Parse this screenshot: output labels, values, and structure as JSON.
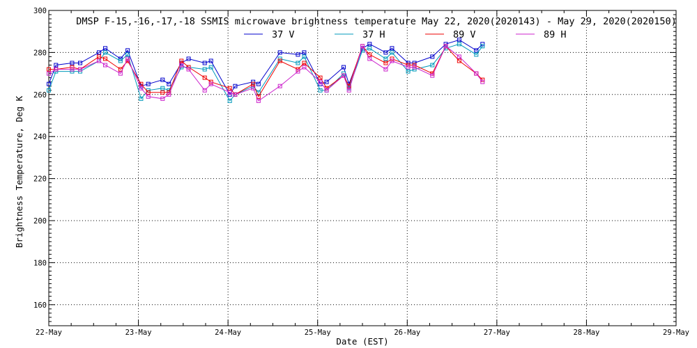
{
  "chart_data": {
    "type": "line",
    "title": "DMSP F-15,-16,-17,-18 SSMIS microwave brightness temperature May 22, 2020(2020143) - May 29, 2020(2020150)",
    "xlabel": "Date (EST)",
    "ylabel": "Brightness Temperature, Deg K",
    "x_ticks": [
      "22-May",
      "23-May",
      "24-May",
      "25-May",
      "26-May",
      "27-May",
      "28-May",
      "29-May"
    ],
    "xlim": [
      0,
      7
    ],
    "ylim": [
      150,
      300
    ],
    "y_ticks": [
      160,
      180,
      200,
      220,
      240,
      260,
      280,
      300
    ],
    "grid": true,
    "legend_position": "top",
    "series": [
      {
        "name": "37 V",
        "color": "#0000cc",
        "x": [
          0.0,
          0.08,
          0.26,
          0.35,
          0.56,
          0.63,
          0.8,
          0.88,
          1.03,
          1.11,
          1.27,
          1.34,
          1.48,
          1.56,
          1.74,
          1.81,
          2.02,
          2.08,
          2.28,
          2.34,
          2.58,
          2.78,
          2.85,
          3.03,
          3.1,
          3.29,
          3.35,
          3.5,
          3.58,
          3.76,
          3.83,
          4.01,
          4.08,
          4.28,
          4.43,
          4.58,
          4.77,
          4.84
        ],
        "y": [
          265,
          274,
          275,
          275,
          280,
          282,
          277,
          281,
          264,
          265,
          267,
          265,
          275,
          277,
          275,
          276,
          260,
          264,
          266,
          265,
          280,
          279,
          280,
          265,
          266,
          273,
          265,
          282,
          284,
          280,
          282,
          275,
          275,
          278,
          284,
          286,
          281,
          284
        ]
      },
      {
        "name": "37 H",
        "color": "#0099bb",
        "x": [
          0.0,
          0.08,
          0.26,
          0.35,
          0.56,
          0.63,
          0.8,
          0.88,
          1.03,
          1.11,
          1.27,
          1.34,
          1.48,
          1.56,
          1.74,
          1.81,
          2.02,
          2.08,
          2.28,
          2.34,
          2.58,
          2.78,
          2.85,
          3.03,
          3.1,
          3.29,
          3.35,
          3.5,
          3.58,
          3.76,
          3.83,
          4.01,
          4.08,
          4.28,
          4.43,
          4.58,
          4.77,
          4.84
        ],
        "y": [
          262,
          271,
          271,
          271,
          276,
          280,
          276,
          279,
          258,
          262,
          263,
          262,
          273,
          273,
          272,
          273,
          257,
          260,
          264,
          261,
          277,
          275,
          278,
          262,
          262,
          270,
          263,
          281,
          282,
          277,
          280,
          271,
          272,
          274,
          282,
          284,
          279,
          283
        ]
      },
      {
        "name": "89 V",
        "color": "#ee0000",
        "x": [
          0.0,
          0.08,
          0.26,
          0.35,
          0.56,
          0.63,
          0.8,
          0.88,
          1.03,
          1.11,
          1.27,
          1.34,
          1.48,
          1.56,
          1.74,
          1.81,
          2.02,
          2.08,
          2.28,
          2.34,
          2.58,
          2.78,
          2.85,
          3.03,
          3.1,
          3.29,
          3.35,
          3.5,
          3.58,
          3.76,
          3.83,
          4.01,
          4.08,
          4.28,
          4.43,
          4.58,
          4.77,
          4.84
        ],
        "y": [
          272,
          272,
          273,
          272,
          278,
          277,
          272,
          276,
          265,
          261,
          261,
          261,
          276,
          273,
          268,
          266,
          263,
          260,
          265,
          259,
          276,
          272,
          275,
          268,
          263,
          269,
          264,
          283,
          279,
          275,
          277,
          274,
          274,
          270,
          283,
          276,
          270,
          267
        ]
      },
      {
        "name": "89 H",
        "color": "#cc22cc",
        "x": [
          0.0,
          0.08,
          0.26,
          0.35,
          0.56,
          0.63,
          0.8,
          0.88,
          1.03,
          1.11,
          1.27,
          1.34,
          1.48,
          1.56,
          1.74,
          1.81,
          2.02,
          2.08,
          2.28,
          2.34,
          2.58,
          2.78,
          2.85,
          3.03,
          3.1,
          3.29,
          3.35,
          3.5,
          3.58,
          3.76,
          3.83,
          4.01,
          4.08,
          4.28,
          4.43,
          4.58,
          4.77,
          4.84
        ],
        "y": [
          270,
          272,
          272,
          272,
          276,
          274,
          270,
          277,
          263,
          259,
          258,
          260,
          274,
          272,
          262,
          265,
          261,
          260,
          263,
          257,
          264,
          271,
          273,
          266,
          262,
          269,
          262,
          283,
          277,
          272,
          276,
          273,
          273,
          269,
          283,
          278,
          270,
          266
        ]
      }
    ]
  }
}
